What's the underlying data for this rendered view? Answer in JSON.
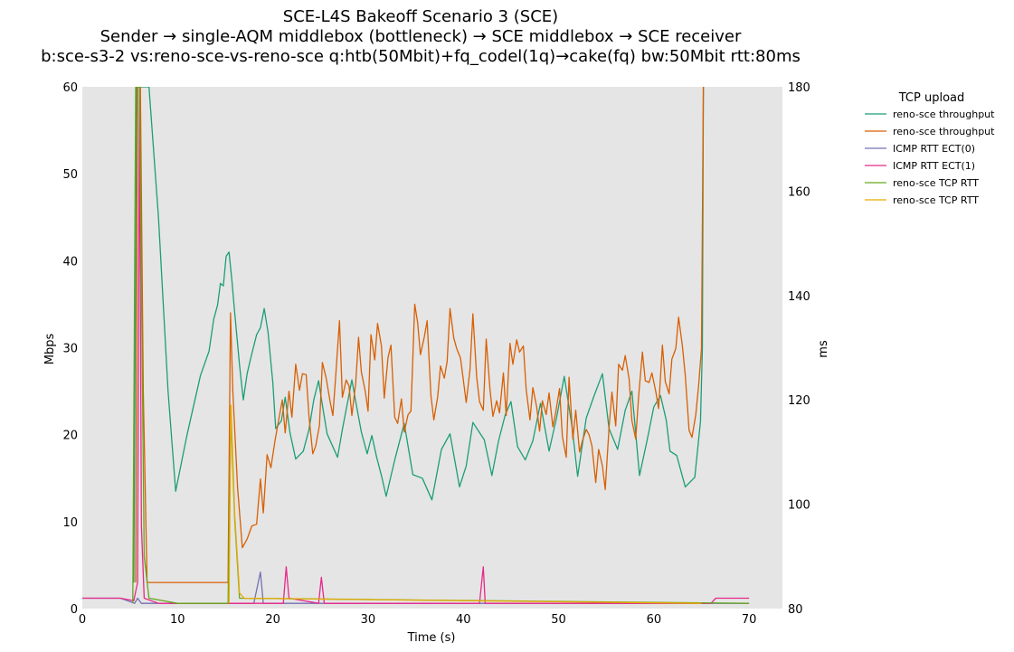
{
  "chart_data": {
    "type": "line",
    "title": [
      "SCE-L4S Bakeoff Scenario 3 (SCE)",
      "Sender → single-AQM middlebox (bottleneck) → SCE middlebox → SCE receiver",
      "b:sce-s3-2 vs:reno-sce-vs-reno-sce q:htb(50Mbit)+fq_codel(1q)→cake(fq) bw:50Mbit rtt:80ms"
    ],
    "xlabel": "Time (s)",
    "ylabel_left": "Mbps",
    "ylabel_right": "ms",
    "xlim": [
      0,
      73.5
    ],
    "ylim_left": [
      0,
      60
    ],
    "ylim_right": [
      80,
      180
    ],
    "xticks": [
      0,
      10,
      20,
      30,
      40,
      50,
      60,
      70
    ],
    "yticks_left": [
      0,
      10,
      20,
      30,
      40,
      50,
      60
    ],
    "yticks_right": [
      80,
      100,
      120,
      140,
      160,
      180
    ],
    "grid": false,
    "background": "#e5e5e5",
    "legend": {
      "title": "TCP upload",
      "placement": "outside-top-right"
    },
    "series": [
      {
        "name": "reno-sce throughput",
        "axis": "left",
        "color": "#1b9e77",
        "points": [
          [
            5.4,
            3
          ],
          [
            5.7,
            60
          ],
          [
            6.5,
            60
          ],
          [
            7.0,
            60
          ],
          [
            8.0,
            45
          ],
          [
            9.0,
            25
          ],
          [
            9.8,
            13.5
          ],
          [
            11,
            20
          ],
          [
            12.4,
            26.8
          ],
          [
            13.3,
            29.6
          ],
          [
            13.8,
            33.3
          ],
          [
            14.2,
            34.9
          ],
          [
            14.5,
            37.4
          ],
          [
            14.8,
            37.1
          ],
          [
            15.1,
            40.5
          ],
          [
            15.4,
            41
          ],
          [
            15.7,
            37.8
          ],
          [
            16,
            34
          ],
          [
            16.5,
            28
          ],
          [
            16.9,
            24
          ],
          [
            17.3,
            27
          ],
          [
            17.7,
            28.9
          ],
          [
            18.3,
            31.5
          ],
          [
            18.7,
            32.3
          ],
          [
            19.1,
            34.5
          ],
          [
            19.5,
            31.8
          ],
          [
            20.0,
            26
          ],
          [
            20.3,
            20.7
          ],
          [
            20.9,
            21.6
          ],
          [
            21.3,
            24.3
          ],
          [
            21.8,
            20.2
          ],
          [
            22.4,
            17.2
          ],
          [
            23.2,
            18.1
          ],
          [
            23.8,
            20.6
          ],
          [
            24.3,
            24
          ],
          [
            24.8,
            26.2
          ],
          [
            25.2,
            23.4
          ],
          [
            25.7,
            20.1
          ],
          [
            26.8,
            17.4
          ],
          [
            27.3,
            20.6
          ],
          [
            28.3,
            26.3
          ],
          [
            28.8,
            23.2
          ],
          [
            29.3,
            20.3
          ],
          [
            29.9,
            17.8
          ],
          [
            30.4,
            19.9
          ],
          [
            30.9,
            17.4
          ],
          [
            31.4,
            15.3
          ],
          [
            31.9,
            12.9
          ],
          [
            32.8,
            17.1
          ],
          [
            33.8,
            21.3
          ],
          [
            34.7,
            15.4
          ],
          [
            35.7,
            15.0
          ],
          [
            36.7,
            12.5
          ],
          [
            37.7,
            18.3
          ],
          [
            38.6,
            20.1
          ],
          [
            39.6,
            14
          ],
          [
            40.3,
            16.4
          ],
          [
            41.0,
            21.4
          ],
          [
            42.2,
            19.4
          ],
          [
            43.0,
            15.3
          ],
          [
            43.7,
            19.3
          ],
          [
            44.4,
            22.3
          ],
          [
            45.0,
            23.8
          ],
          [
            45.7,
            18.6
          ],
          [
            46.5,
            17.1
          ],
          [
            47.3,
            19.3
          ],
          [
            48.1,
            23.6
          ],
          [
            49.0,
            18.1
          ],
          [
            49.8,
            22.0
          ],
          [
            50.6,
            26.7
          ],
          [
            51.4,
            21.0
          ],
          [
            52.0,
            15.2
          ],
          [
            52.9,
            21.9
          ],
          [
            53.7,
            24.4
          ],
          [
            54.6,
            27.0
          ],
          [
            55.3,
            20.7
          ],
          [
            56.2,
            18.3
          ],
          [
            57.0,
            22.8
          ],
          [
            57.7,
            25.0
          ],
          [
            58.5,
            15.3
          ],
          [
            59.3,
            19.4
          ],
          [
            60.0,
            23.2
          ],
          [
            60.7,
            24.5
          ],
          [
            61.3,
            21.7
          ],
          [
            61.7,
            18.1
          ],
          [
            62.4,
            17.6
          ],
          [
            63.3,
            14.0
          ],
          [
            64.3,
            15.1
          ],
          [
            64.9,
            21.5
          ],
          [
            65.1,
            30
          ],
          [
            65.2,
            60
          ]
        ]
      },
      {
        "name": "reno-sce throughput",
        "axis": "left",
        "color": "#d95f02",
        "points": [
          [
            5.6,
            3
          ],
          [
            5.8,
            60
          ],
          [
            6.1,
            60
          ],
          [
            6.4,
            25
          ],
          [
            6.8,
            3
          ],
          [
            15.3,
            3
          ],
          [
            15.55,
            34
          ],
          [
            15.8,
            25
          ],
          [
            16.3,
            14
          ],
          [
            16.8,
            7
          ],
          [
            17.3,
            8
          ],
          [
            17.8,
            9.5
          ],
          [
            18.3,
            9.7
          ],
          [
            18.7,
            14.9
          ],
          [
            19.0,
            11.0
          ],
          [
            19.4,
            17.7
          ],
          [
            19.8,
            16.2
          ],
          [
            20.2,
            19.1
          ],
          [
            20.6,
            21.6
          ],
          [
            21.0,
            24.0
          ],
          [
            21.3,
            20.2
          ],
          [
            21.7,
            25.0
          ],
          [
            22.0,
            22.0
          ],
          [
            22.4,
            28.1
          ],
          [
            22.8,
            25.1
          ],
          [
            23.1,
            27.0
          ],
          [
            23.5,
            26.9
          ],
          [
            23.8,
            22.1
          ],
          [
            24.2,
            17.8
          ],
          [
            24.5,
            18.7
          ],
          [
            24.9,
            21.1
          ],
          [
            25.2,
            28.3
          ],
          [
            25.6,
            26.5
          ],
          [
            26.0,
            23.9
          ],
          [
            26.3,
            22.2
          ],
          [
            26.6,
            26.7
          ],
          [
            27.0,
            33.1
          ],
          [
            27.3,
            24.3
          ],
          [
            27.7,
            26.3
          ],
          [
            28.0,
            25.6
          ],
          [
            28.3,
            22.2
          ],
          [
            28.7,
            25.9
          ],
          [
            29.0,
            31.2
          ],
          [
            29.3,
            27.2
          ],
          [
            29.7,
            25.0
          ],
          [
            30.0,
            22.7
          ],
          [
            30.3,
            31.5
          ],
          [
            30.7,
            28.6
          ],
          [
            31.0,
            32.8
          ],
          [
            31.4,
            30.2
          ],
          [
            31.7,
            24.2
          ],
          [
            32.1,
            28.9
          ],
          [
            32.4,
            30.3
          ],
          [
            32.8,
            22.0
          ],
          [
            33.1,
            21.3
          ],
          [
            33.5,
            24.1
          ],
          [
            33.8,
            20.3
          ],
          [
            34.2,
            22.3
          ],
          [
            34.5,
            22.7
          ],
          [
            34.9,
            35.0
          ],
          [
            35.2,
            32.9
          ],
          [
            35.5,
            29.2
          ],
          [
            35.9,
            31.2
          ],
          [
            36.2,
            33.1
          ],
          [
            36.6,
            24.5
          ],
          [
            36.9,
            21.7
          ],
          [
            37.3,
            24.3
          ],
          [
            37.6,
            27.9
          ],
          [
            38.0,
            26.5
          ],
          [
            38.3,
            28.4
          ],
          [
            38.6,
            34.5
          ],
          [
            39.0,
            31.1
          ],
          [
            39.3,
            29.9
          ],
          [
            39.7,
            28.8
          ],
          [
            40.0,
            26.3
          ],
          [
            40.3,
            23.7
          ],
          [
            40.7,
            27.5
          ],
          [
            41.0,
            33.9
          ],
          [
            41.4,
            26.6
          ],
          [
            41.7,
            23.8
          ],
          [
            42.1,
            22.8
          ],
          [
            42.4,
            31.0
          ],
          [
            42.8,
            25.2
          ],
          [
            43.1,
            22.1
          ],
          [
            43.5,
            23.9
          ],
          [
            43.8,
            22.5
          ],
          [
            44.2,
            27.1
          ],
          [
            44.5,
            22.2
          ],
          [
            44.9,
            30.5
          ],
          [
            45.2,
            28.1
          ],
          [
            45.6,
            30.9
          ],
          [
            45.9,
            29.5
          ],
          [
            46.3,
            30.2
          ],
          [
            46.6,
            25.2
          ],
          [
            47.0,
            21.7
          ],
          [
            47.3,
            25.4
          ],
          [
            47.7,
            23.2
          ],
          [
            48.0,
            20.4
          ],
          [
            48.3,
            23.9
          ],
          [
            48.7,
            22.3
          ],
          [
            49.0,
            24.8
          ],
          [
            49.4,
            20.9
          ],
          [
            49.7,
            22.6
          ],
          [
            50.1,
            25.3
          ],
          [
            50.4,
            19.8
          ],
          [
            50.8,
            17.4
          ],
          [
            51.1,
            26.6
          ],
          [
            51.5,
            19.5
          ],
          [
            51.8,
            22.8
          ],
          [
            52.2,
            18.0
          ],
          [
            52.5,
            19.3
          ],
          [
            52.9,
            20.6
          ],
          [
            53.2,
            20.0
          ],
          [
            53.5,
            18.7
          ],
          [
            53.9,
            14.5
          ],
          [
            54.2,
            18.3
          ],
          [
            54.6,
            16.4
          ],
          [
            54.9,
            13.7
          ],
          [
            55.3,
            20.8
          ],
          [
            55.6,
            24.9
          ],
          [
            56.0,
            21.0
          ],
          [
            56.3,
            28.1
          ],
          [
            56.7,
            27.4
          ],
          [
            57.0,
            29.1
          ],
          [
            57.4,
            26.4
          ],
          [
            57.7,
            21.6
          ],
          [
            58.1,
            19.5
          ],
          [
            58.4,
            24.4
          ],
          [
            58.8,
            29.5
          ],
          [
            59.1,
            26.2
          ],
          [
            59.5,
            26.0
          ],
          [
            59.8,
            27.1
          ],
          [
            60.2,
            25.0
          ],
          [
            60.5,
            23.0
          ],
          [
            60.9,
            30.3
          ],
          [
            61.2,
            26.1
          ],
          [
            61.6,
            24.7
          ],
          [
            61.9,
            28.7
          ],
          [
            62.3,
            29.9
          ],
          [
            62.6,
            33.5
          ],
          [
            63.0,
            30.2
          ],
          [
            63.3,
            26.8
          ],
          [
            63.7,
            20.5
          ],
          [
            64.0,
            19.7
          ],
          [
            64.4,
            22.3
          ],
          [
            64.7,
            25.6
          ],
          [
            65.0,
            29.9
          ],
          [
            65.2,
            60
          ]
        ]
      },
      {
        "name": "ICMP RTT ECT(0)",
        "axis": "right",
        "color": "#7570b3",
        "points": [
          [
            0,
            82
          ],
          [
            2,
            82
          ],
          [
            4,
            82
          ],
          [
            5.5,
            81
          ],
          [
            5.8,
            82
          ],
          [
            6.2,
            81
          ],
          [
            8,
            81
          ],
          [
            15,
            81
          ],
          [
            18,
            81
          ],
          [
            18.7,
            87
          ],
          [
            19,
            81
          ],
          [
            70,
            81
          ]
        ]
      },
      {
        "name": "ICMP RTT ECT(1)",
        "axis": "right",
        "color": "#e7298a",
        "points": [
          [
            0,
            82
          ],
          [
            2,
            82
          ],
          [
            4,
            82
          ],
          [
            5.4,
            81.5
          ],
          [
            5.8,
            85
          ],
          [
            6.0,
            180
          ],
          [
            6.2,
            96
          ],
          [
            6.5,
            82
          ],
          [
            8,
            81
          ],
          [
            15,
            81
          ],
          [
            21.1,
            81
          ],
          [
            21.4,
            88
          ],
          [
            21.7,
            82
          ],
          [
            24.8,
            81
          ],
          [
            25.1,
            86
          ],
          [
            25.4,
            81
          ],
          [
            41.7,
            81
          ],
          [
            42.1,
            88
          ],
          [
            42.3,
            81
          ],
          [
            66,
            81
          ],
          [
            66.5,
            82
          ],
          [
            70,
            82
          ]
        ]
      },
      {
        "name": "reno-sce TCP RTT",
        "axis": "right",
        "color": "#66a61e",
        "points": [
          [
            5.3,
            81
          ],
          [
            5.6,
            180
          ],
          [
            6.0,
            180
          ],
          [
            6.5,
            90
          ],
          [
            7.0,
            82
          ],
          [
            10,
            81
          ],
          [
            15.3,
            81
          ],
          [
            15.6,
            117
          ],
          [
            16.0,
            97
          ],
          [
            16.5,
            82
          ],
          [
            70,
            81
          ]
        ]
      },
      {
        "name": "reno-sce TCP RTT",
        "axis": "right",
        "color": "#e6ab02",
        "points": [
          [
            15.4,
            81
          ],
          [
            15.6,
            119
          ],
          [
            16.0,
            98
          ],
          [
            16.5,
            83
          ],
          [
            17,
            82
          ],
          [
            65,
            81
          ]
        ]
      }
    ]
  }
}
